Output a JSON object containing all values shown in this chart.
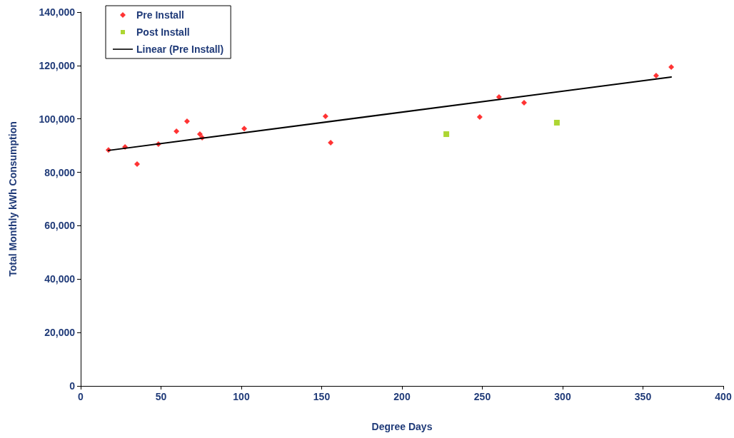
{
  "chart_data": {
    "type": "scatter",
    "xlabel": "Degree Days",
    "ylabel": "Total Monthly kWh Consumption",
    "xlim": [
      0,
      400
    ],
    "xticks": [
      0,
      50,
      100,
      150,
      200,
      250,
      300,
      350,
      400
    ],
    "ylim": [
      0,
      140000
    ],
    "yticks": [
      0,
      {
        "value": 20000,
        "label": "20,000"
      },
      {
        "value": 40000,
        "label": "40,000"
      },
      {
        "value": 60000,
        "label": "60,000"
      },
      {
        "value": 80000,
        "label": "80,000"
      },
      {
        "value": 100000,
        "label": "100,000"
      },
      {
        "value": 120000,
        "label": "120,000"
      },
      {
        "value": 140000,
        "label": "140,000"
      }
    ],
    "grid": false,
    "legend": "top left",
    "series": [
      {
        "name": "Pre Install",
        "marker": "diamond",
        "color": "#ff0000",
        "x": [
          17.3,
          27.6,
          35.1,
          48.4,
          59.6,
          66.2,
          74.2,
          75.6,
          101.8,
          152.4,
          155.6,
          248.4,
          260.4,
          276,
          358.2,
          367.6
        ],
        "values": [
          88400,
          89500,
          83100,
          90600,
          95400,
          99100,
          94300,
          93000,
          96400,
          101000,
          91100,
          100700,
          108200,
          106100,
          116200,
          119400
        ]
      },
      {
        "name": "Post Install",
        "marker": "square",
        "color": "#99cc00",
        "x": [
          227.6,
          296.4
        ],
        "values": [
          94300,
          98600
        ]
      },
      {
        "name": "Linear (Pre Install)",
        "type": "line",
        "marker": "none",
        "line_style": "solid",
        "color": "#000000",
        "x": [
          17.3,
          367.6
        ],
        "values": [
          88200,
          115700
        ]
      }
    ]
  }
}
